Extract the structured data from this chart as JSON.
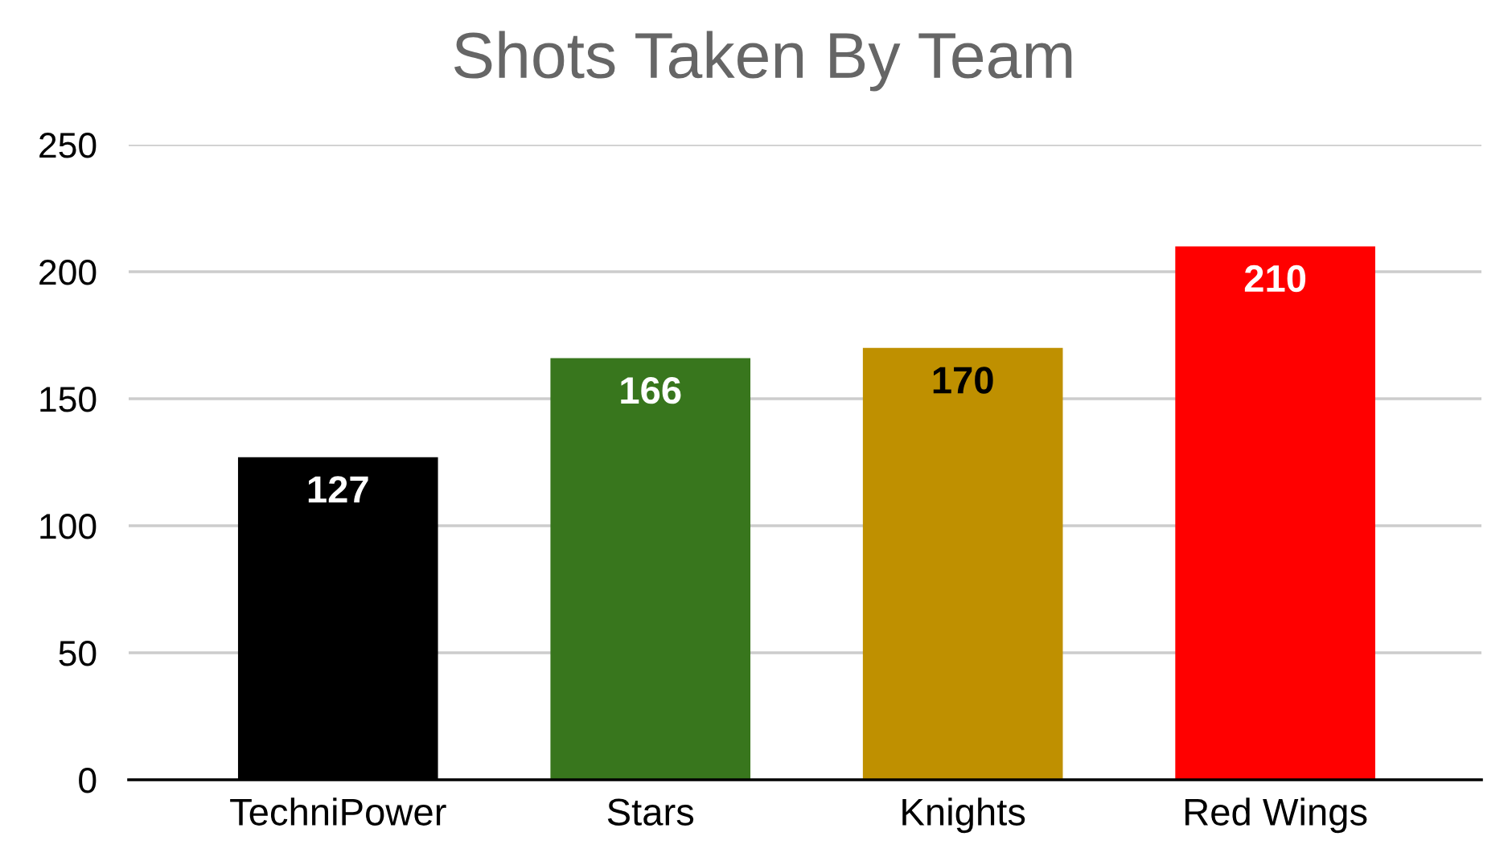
{
  "chart_data": {
    "type": "bar",
    "title": "Shots Taken By Team",
    "categories": [
      "TechniPower",
      "Stars",
      "Knights",
      "Red Wings"
    ],
    "values": [
      127,
      166,
      170,
      210
    ],
    "colors": [
      "#000000",
      "#38761d",
      "#bf9000",
      "#ff0000"
    ],
    "ylim": [
      0,
      250
    ],
    "yticks": [
      0,
      50,
      100,
      150,
      200,
      250
    ],
    "grid": "y",
    "data_labels": true,
    "legend": false
  }
}
